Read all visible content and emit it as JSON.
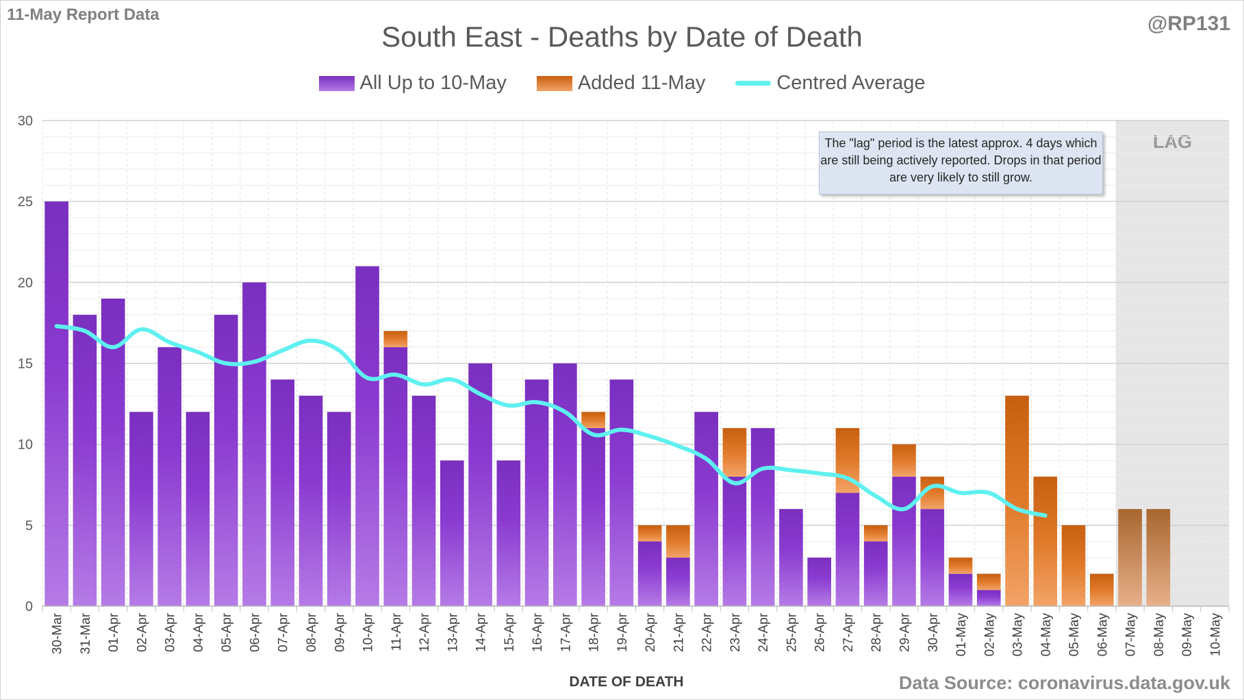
{
  "report_label": "11-May Report Data",
  "handle": "@RP131",
  "source": "Data Source: coronavirus.data.gov.uk",
  "note": "The \"lag\" period is the latest approx. 4 days which are still being actively reported. Drops in that period are very likely to still grow.",
  "lag_label": "LAG",
  "legend": {
    "purple": "All Up to 10-May",
    "orange": "Added 11-May",
    "line": "Centred Average"
  },
  "colors": {
    "purple_top": "#7a2fbf",
    "purple_bottom": "#b57be6",
    "orange_top": "#c75f10",
    "orange_bottom": "#f3a368",
    "average_line": "#5ff0f0",
    "lag_shade": "#e6e6e6",
    "grid": "#d9d9d9"
  },
  "chart_data": {
    "type": "bar",
    "title": "South East - Deaths by Date of Death",
    "xlabel": "DATE OF DEATH",
    "ylabel": "",
    "ylim": [
      0,
      30
    ],
    "yticks": [
      0,
      5,
      10,
      15,
      20,
      25,
      30
    ],
    "stacked": true,
    "categories": [
      "30-Mar",
      "31-Mar",
      "01-Apr",
      "02-Apr",
      "03-Apr",
      "04-Apr",
      "05-Apr",
      "06-Apr",
      "07-Apr",
      "08-Apr",
      "09-Apr",
      "10-Apr",
      "11-Apr",
      "12-Apr",
      "13-Apr",
      "14-Apr",
      "15-Apr",
      "16-Apr",
      "17-Apr",
      "18-Apr",
      "19-Apr",
      "20-Apr",
      "21-Apr",
      "22-Apr",
      "23-Apr",
      "24-Apr",
      "25-Apr",
      "26-Apr",
      "27-Apr",
      "28-Apr",
      "29-Apr",
      "30-Apr",
      "01-May",
      "02-May",
      "03-May",
      "04-May",
      "05-May",
      "06-May",
      "07-May",
      "08-May",
      "09-May",
      "10-May"
    ],
    "series": [
      {
        "name": "All Up to 10-May",
        "values": [
          25,
          18,
          19,
          12,
          16,
          12,
          18,
          20,
          14,
          13,
          12,
          21,
          16,
          13,
          9,
          15,
          9,
          14,
          15,
          11,
          14,
          4,
          3,
          12,
          8,
          11,
          6,
          3,
          7,
          4,
          8,
          6,
          2,
          1,
          0,
          0,
          0,
          0,
          0,
          0,
          0,
          0
        ]
      },
      {
        "name": "Added 11-May",
        "values": [
          0,
          0,
          0,
          0,
          0,
          0,
          0,
          0,
          0,
          0,
          0,
          0,
          1,
          0,
          0,
          0,
          0,
          0,
          0,
          1,
          0,
          1,
          2,
          0,
          3,
          0,
          0,
          0,
          4,
          1,
          2,
          2,
          1,
          1,
          13,
          8,
          5,
          2,
          6,
          6,
          0,
          0
        ]
      },
      {
        "name": "Centred Average",
        "type": "line",
        "values": [
          17.3,
          17.0,
          16.0,
          17.1,
          16.3,
          15.7,
          15.0,
          15.1,
          15.8,
          16.4,
          15.8,
          14.1,
          14.3,
          13.7,
          14.0,
          13.1,
          12.4,
          12.6,
          12.0,
          10.6,
          10.9,
          10.5,
          9.9,
          9.1,
          7.6,
          8.5,
          8.4,
          8.2,
          7.9,
          6.8,
          6.0,
          7.4,
          7.0,
          7.0,
          6.0,
          5.6,
          null,
          null,
          null,
          null,
          null,
          null
        ]
      }
    ],
    "lag_categories": [
      "07-May",
      "08-May",
      "09-May",
      "10-May"
    ],
    "grid": true,
    "legend_position": "top"
  }
}
